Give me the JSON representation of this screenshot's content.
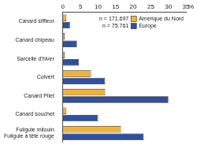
{
  "chart_data": {
    "type": "bar",
    "orientation": "horizontal",
    "categories": [
      "Canard siffleur",
      "Canard chipeau",
      "Sarcelle d'hiver",
      "Colvert",
      "Canard Pilet",
      "Canard souchet",
      [
        "Fuligule milouin",
        "Fuligule à tête rouge"
      ]
    ],
    "series": [
      {
        "name": "Amérique du Nord",
        "color": "#f2b233",
        "values": [
          1,
          0.5,
          0.5,
          8,
          12,
          1,
          16.5
        ]
      },
      {
        "name": "Europe",
        "color": "#2f4f9f",
        "values": [
          2,
          4,
          4.5,
          12,
          30,
          10,
          23
        ]
      }
    ],
    "annotations": [
      "n = 171.697",
      "n = 75.761"
    ],
    "xlabel": "%",
    "xlim": [
      0,
      35
    ],
    "xticks": [
      0,
      5,
      10,
      15,
      20,
      25,
      30,
      35
    ],
    "grid": false,
    "legend": "upper right",
    "data_labels": false
  }
}
